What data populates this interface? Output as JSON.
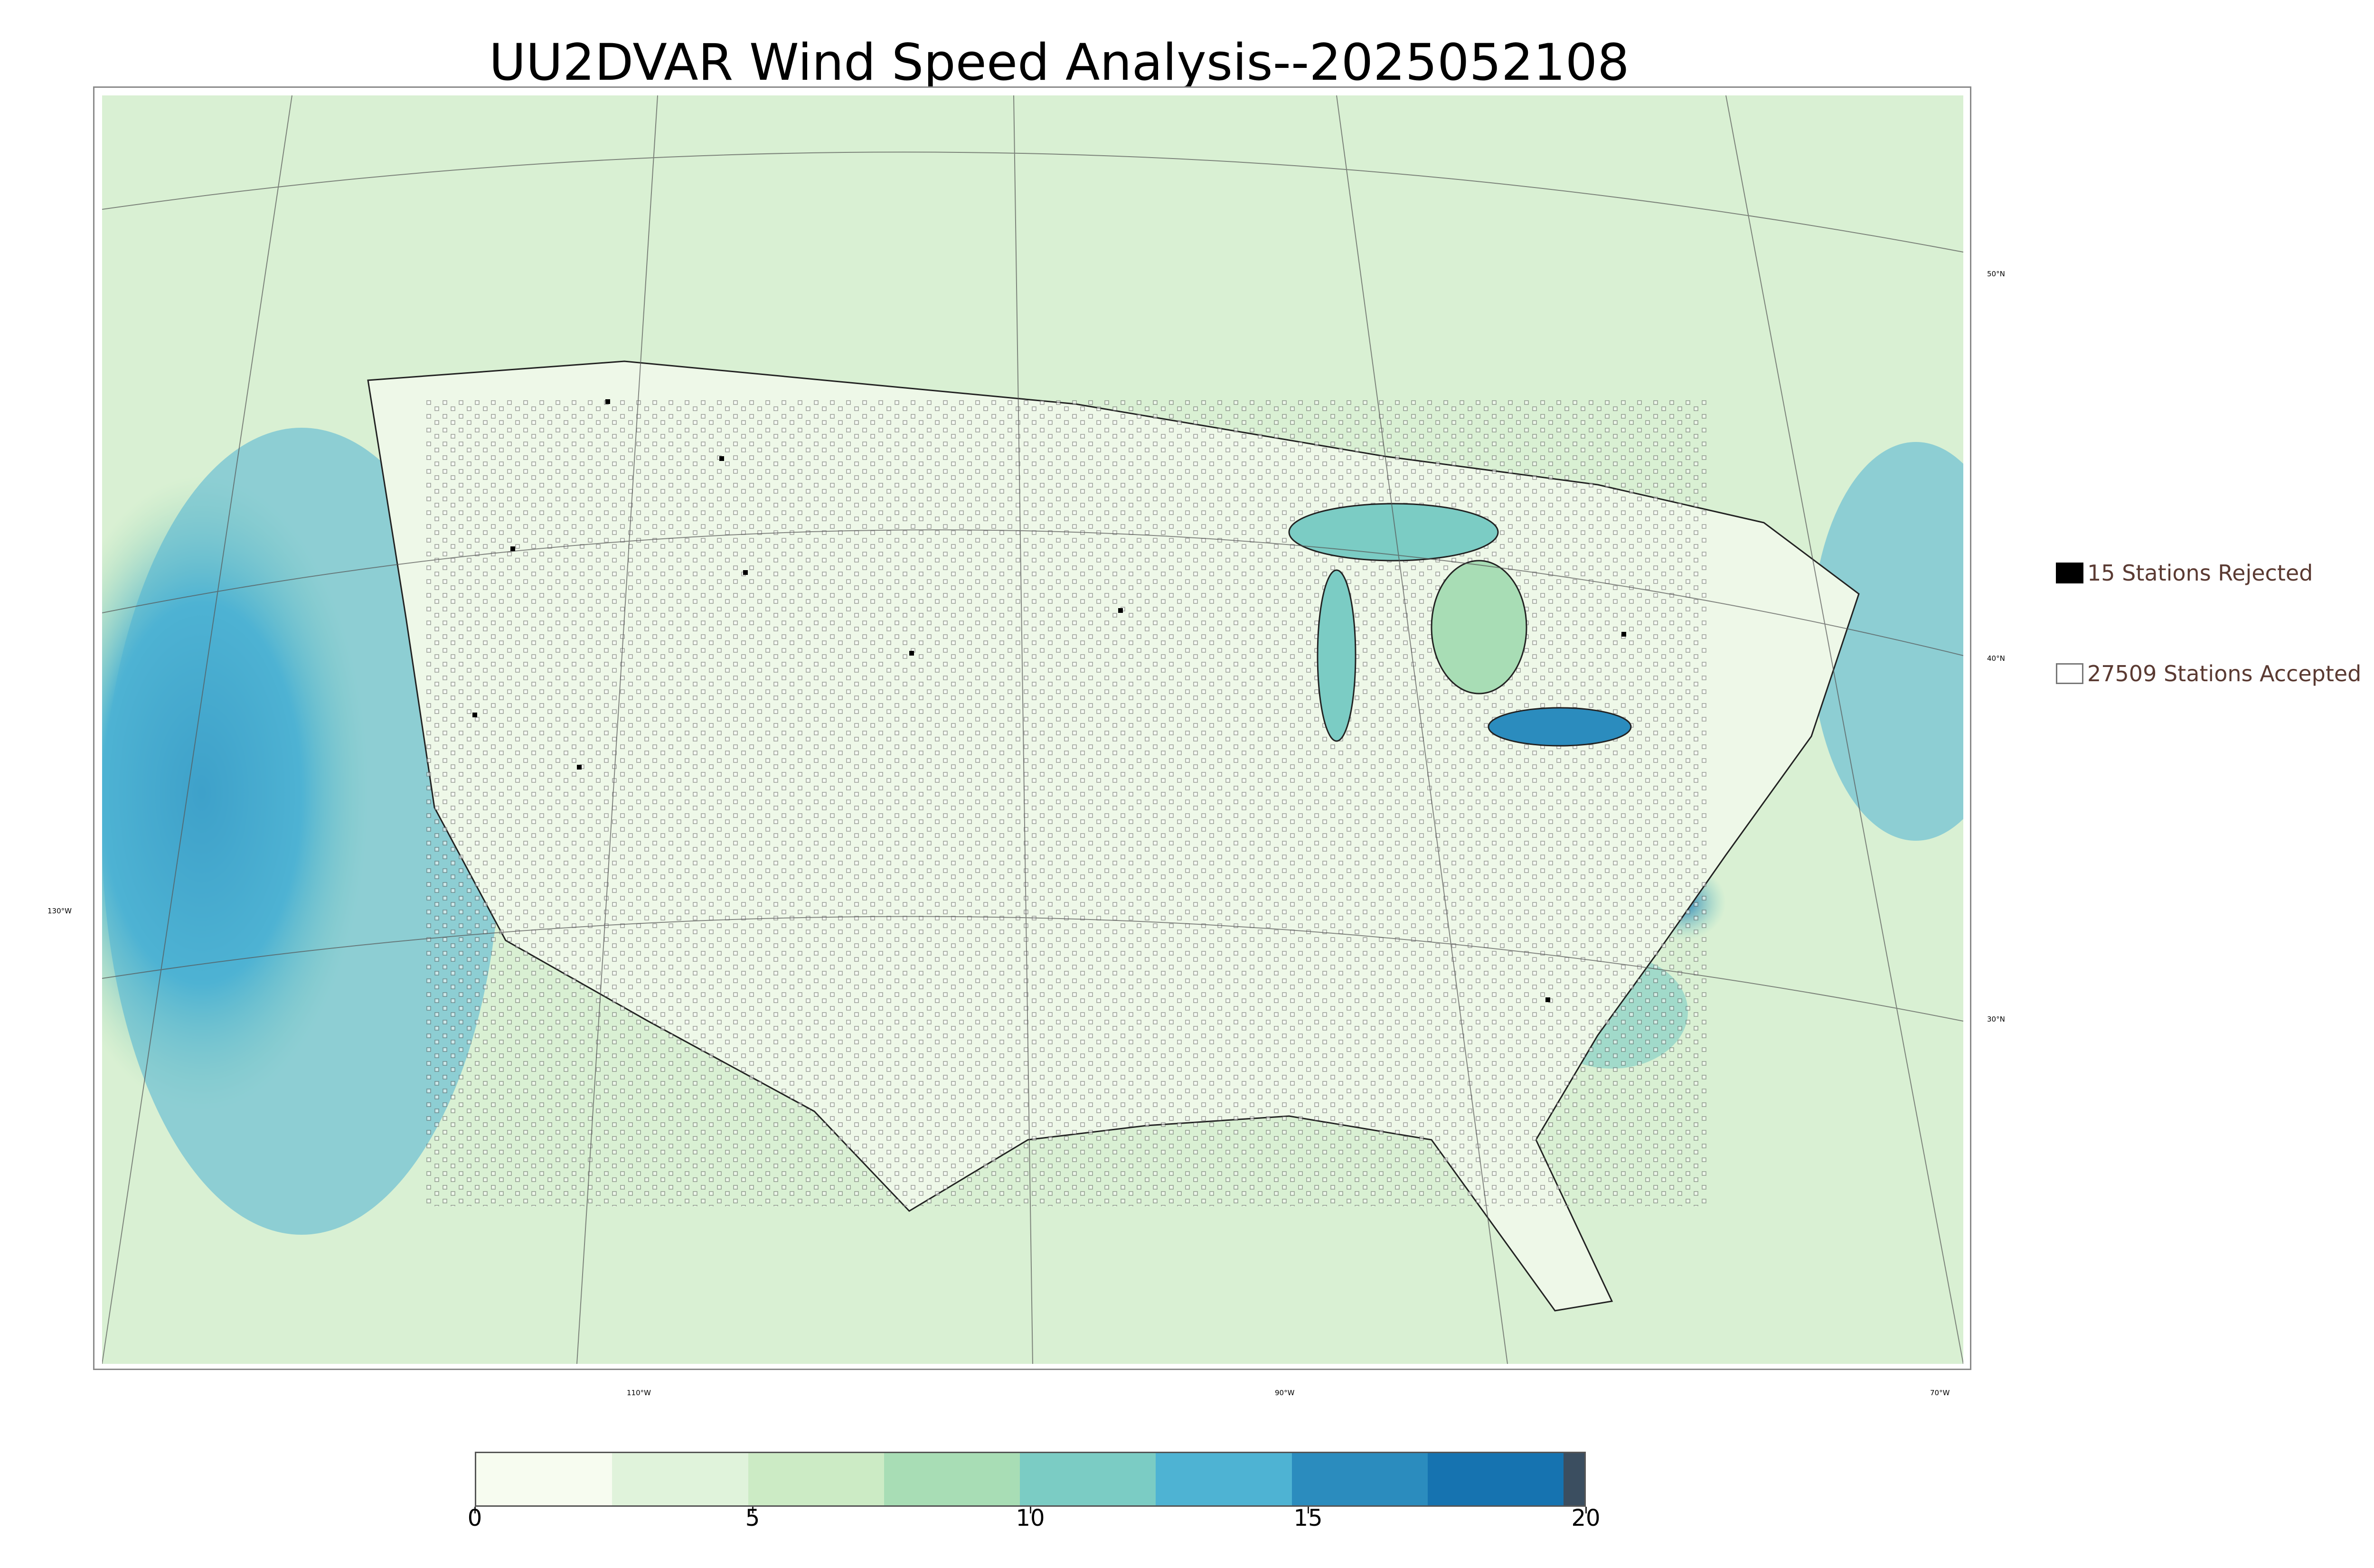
{
  "title": "UU2DVAR Wind Speed Analysis--2025052108",
  "map": {
    "longitude_labels": [
      "130°W",
      "110°W",
      "90°W",
      "70°W"
    ],
    "latitude_labels": [
      "50°N",
      "40°N",
      "30°N"
    ]
  },
  "legend": {
    "rejected": {
      "label": "15 Stations Rejected",
      "color": "#000000"
    },
    "accepted": {
      "label": "27509 Stations Accepted",
      "color": "#ffffff"
    }
  },
  "colorbar": {
    "min": 0,
    "max": 20,
    "ticks": [
      "0",
      "5",
      "10",
      "15",
      "20"
    ],
    "colors": [
      "#f7fcf0",
      "#e0f3db",
      "#ccebc5",
      "#a8ddb5",
      "#7bccc4",
      "#4eb3d3",
      "#2b8cbe",
      "#1673b0",
      "#3b4e60"
    ]
  }
}
